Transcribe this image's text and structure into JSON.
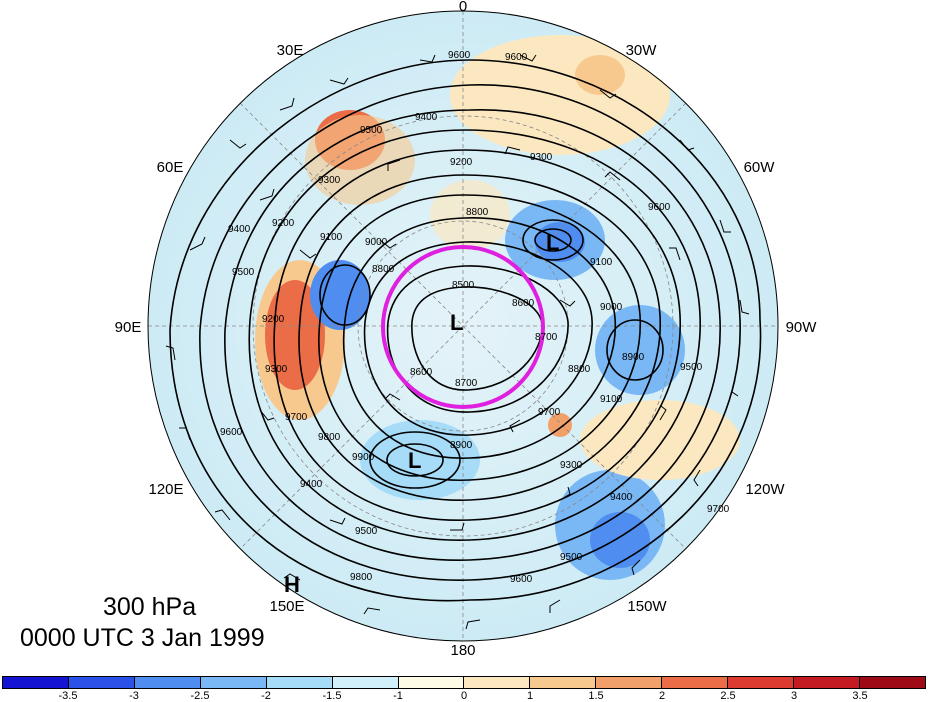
{
  "map": {
    "projection": "north-polar-stereographic",
    "longitude_labels": {
      "top": "0",
      "upper_left": "30E",
      "upper_right": "30W",
      "left_upper": "60E",
      "right_upper": "60W",
      "left": "90E",
      "right": "90W",
      "left_lower": "120E",
      "right_lower": "120W",
      "lower_left": "150E",
      "lower_right": "150W",
      "bottom": "180"
    },
    "height_contour_labels": [
      "9600",
      "9600",
      "9400",
      "9500",
      "9300",
      "9200",
      "9100",
      "9000",
      "8800",
      "8500",
      "8600",
      "8700",
      "8600",
      "8800",
      "9200",
      "9300",
      "9400",
      "9500",
      "9600",
      "9700",
      "9800",
      "9900",
      "9500",
      "9400",
      "9300",
      "9200",
      "9100",
      "9000",
      "8900",
      "8800",
      "8700",
      "9600",
      "9500",
      "9700",
      "9800",
      "8900",
      "9100",
      "9300",
      "9400",
      "9500",
      "9600",
      "9700"
    ],
    "systems": [
      {
        "label": "L",
        "color": "#000000"
      },
      {
        "label": "L",
        "color": "#000000"
      },
      {
        "label": "L",
        "color": "#000000"
      },
      {
        "label": "H",
        "color": "#000000"
      }
    ],
    "highlight_circle_color": "#e020e0"
  },
  "caption": {
    "level": "300 hPa",
    "time": "0000 UTC 3 Jan 1999"
  },
  "colorbar": {
    "colors": [
      "#1414d2",
      "#2a52e8",
      "#4f8ef0",
      "#7ab8f5",
      "#a6dcf8",
      "#d2f0fa",
      "#fdfbe6",
      "#fbe8c0",
      "#f7c98f",
      "#f2a06a",
      "#ea6d48",
      "#dd3a30",
      "#c41a22",
      "#9e0a16"
    ],
    "tick_labels": [
      "-3.5",
      "-3",
      "-2.5",
      "-2",
      "-1.5",
      "-1",
      "0",
      "1",
      "1.5",
      "2",
      "2.5",
      "3",
      "3.5"
    ]
  }
}
